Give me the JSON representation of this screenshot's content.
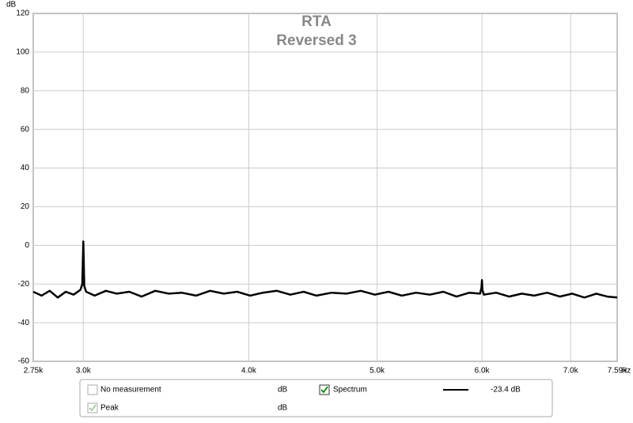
{
  "chart_data": {
    "type": "line",
    "title": "RTA",
    "subtitle": "Reversed 3",
    "y_label": "dB",
    "x_unit": "Hz",
    "xscale": "log",
    "grid": true,
    "xlim": [
      2750,
      7590
    ],
    "xticks": [
      {
        "value": 2750,
        "label": "2.75k"
      },
      {
        "value": 3000,
        "label": "3.0k"
      },
      {
        "value": 4000,
        "label": "4.0k"
      },
      {
        "value": 5000,
        "label": "5.0k"
      },
      {
        "value": 6000,
        "label": "6.0k"
      },
      {
        "value": 7000,
        "label": "7.0k"
      },
      {
        "value": 7590,
        "label": "7.59k"
      }
    ],
    "ylim": [
      -60,
      120
    ],
    "yticks": [
      -60,
      -40,
      -20,
      0,
      20,
      40,
      60,
      80,
      100,
      120
    ],
    "x": [
      2750,
      2790,
      2830,
      2870,
      2910,
      2950,
      2985,
      2995,
      3000,
      3005,
      3015,
      3060,
      3120,
      3180,
      3250,
      3320,
      3400,
      3480,
      3560,
      3650,
      3740,
      3830,
      3920,
      4010,
      4100,
      4200,
      4300,
      4400,
      4500,
      4620,
      4740,
      4860,
      4980,
      5100,
      5220,
      5350,
      5480,
      5610,
      5740,
      5870,
      5980,
      5995,
      6000,
      6005,
      6020,
      6150,
      6290,
      6430,
      6570,
      6720,
      6870,
      7020,
      7170,
      7320,
      7460,
      7590
    ],
    "series": [
      {
        "name": "Spectrum",
        "color": "#000000",
        "values": [
          -24,
          -26,
          -23.5,
          -27,
          -24,
          -25.5,
          -23,
          -20,
          2,
          -21,
          -24,
          -26,
          -23.5,
          -25,
          -24,
          -26.5,
          -23.5,
          -25,
          -24.5,
          -26,
          -23.5,
          -25,
          -24,
          -26,
          -24.5,
          -23.5,
          -25.5,
          -24,
          -26,
          -24.5,
          -25,
          -23.5,
          -25.5,
          -24,
          -26,
          -24.5,
          -25.5,
          -24,
          -26.5,
          -24.5,
          -25,
          -22,
          -18,
          -23,
          -25.5,
          -24.5,
          -26.5,
          -25,
          -26,
          -24.5,
          -26.5,
          -25,
          -27,
          -25,
          -26.5,
          -27
        ]
      }
    ],
    "status_rows": [
      {
        "label": "No measurement",
        "checked": false,
        "enabled": false,
        "unit": "dB"
      },
      {
        "label": "Peak",
        "checked": true,
        "enabled": false,
        "unit": "dB"
      }
    ],
    "readout": "-23.4 dB"
  }
}
